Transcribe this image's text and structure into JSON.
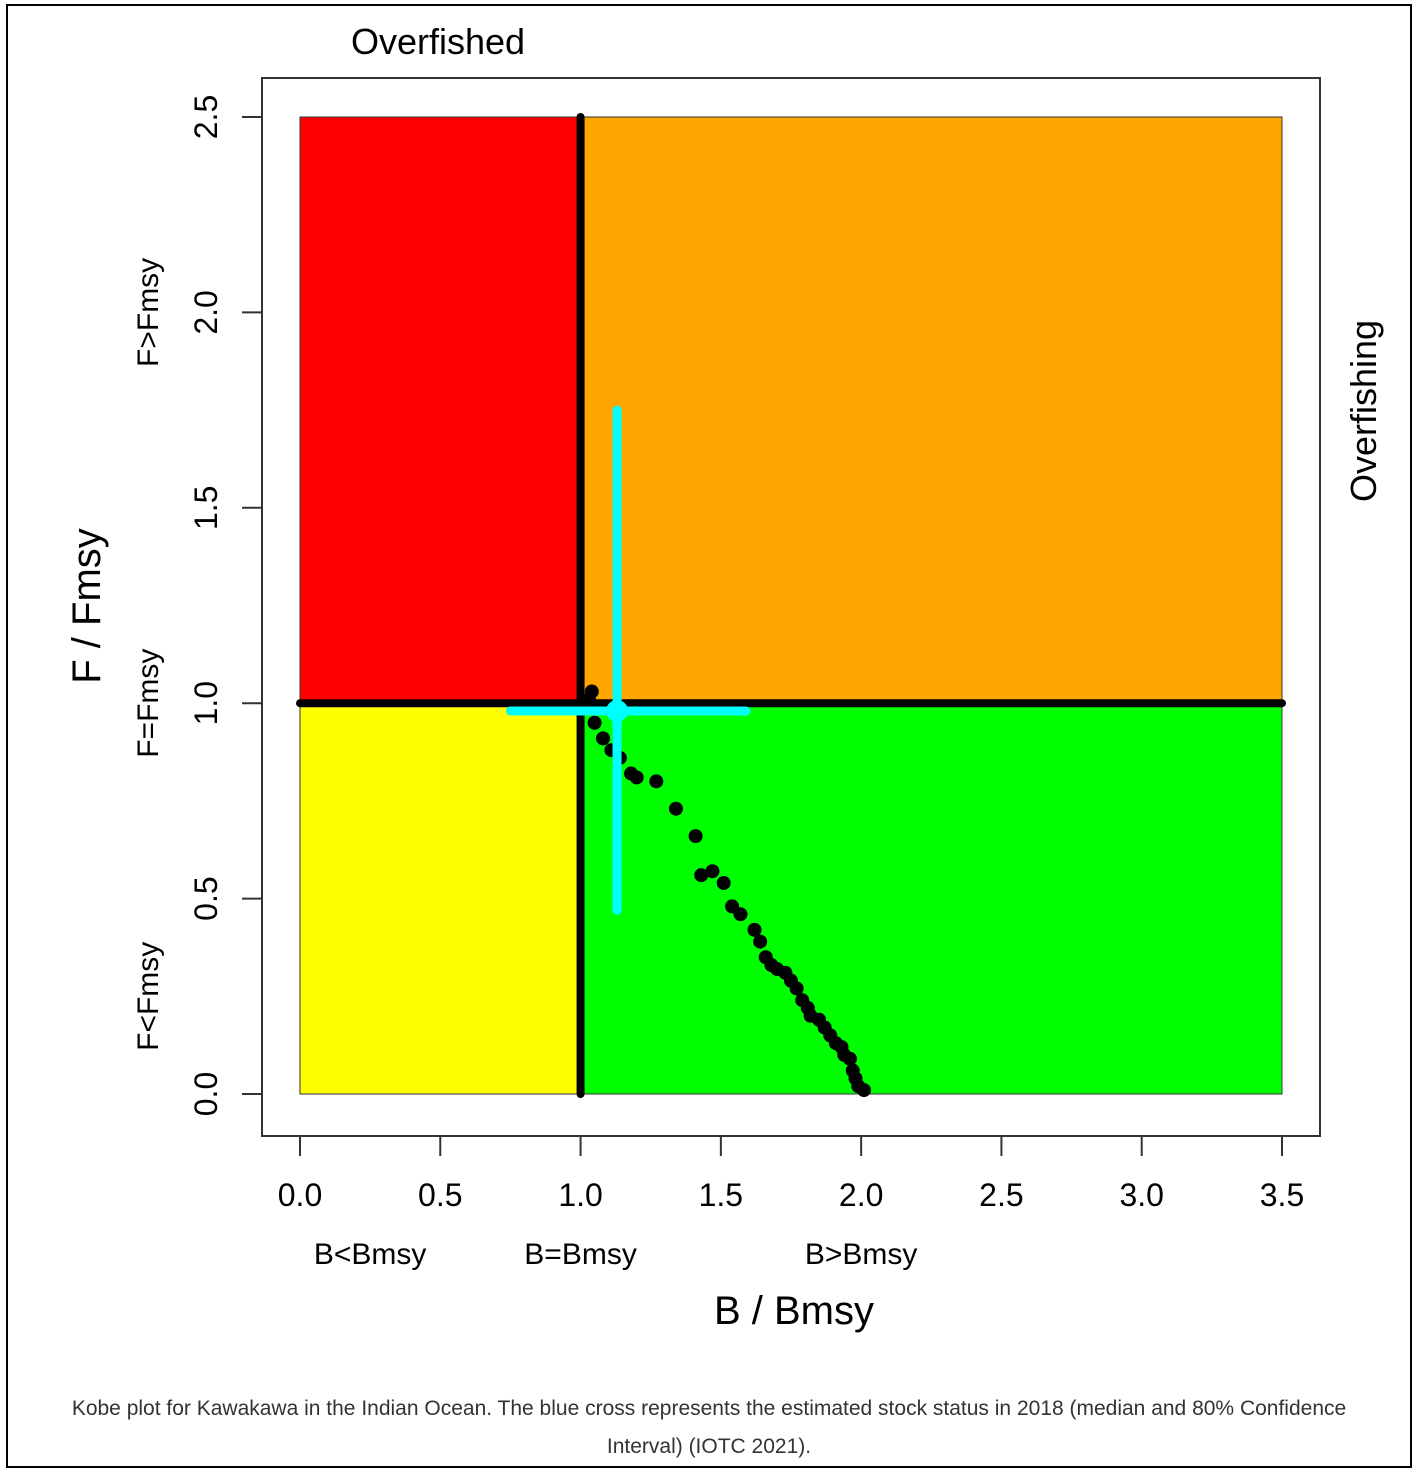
{
  "chart_data": {
    "type": "scatter",
    "title": "Overfished",
    "right_title": "Overfishing",
    "xlabel": "B / Bmsy",
    "ylabel": "F / Fmsy",
    "xlim": [
      0,
      3.5
    ],
    "ylim": [
      0,
      2.5
    ],
    "x_ticks": [
      "0.0",
      "0.5",
      "1.0",
      "1.5",
      "2.0",
      "2.5",
      "3.0",
      "3.5"
    ],
    "y_ticks": [
      "0.0",
      "0.5",
      "1.0",
      "1.5",
      "2.0",
      "2.5"
    ],
    "x_region_labels": [
      {
        "text": "B<Bmsy",
        "x": 0.25
      },
      {
        "text": "B=Bmsy",
        "x": 1.0
      },
      {
        "text": "B>Bmsy",
        "x": 2.0
      }
    ],
    "y_region_labels": [
      {
        "text": "F<Fmsy",
        "y": 0.25
      },
      {
        "text": "F=Fmsy",
        "y": 1.0
      },
      {
        "text": "F>Fmsy",
        "y": 2.0
      }
    ],
    "quadrants": [
      {
        "name": "overfished-and-overfishing",
        "x": [
          0,
          1
        ],
        "y": [
          1,
          2.5
        ],
        "color": "#ff0000"
      },
      {
        "name": "overfishing",
        "x": [
          1,
          3.5
        ],
        "y": [
          1,
          2.5
        ],
        "color": "#ffa500"
      },
      {
        "name": "overfished",
        "x": [
          0,
          1
        ],
        "y": [
          0,
          1
        ],
        "color": "#ffff00"
      },
      {
        "name": "healthy",
        "x": [
          1,
          3.5
        ],
        "y": [
          0,
          1
        ],
        "color": "#00ff00"
      }
    ],
    "reference_lines": {
      "x": 1.0,
      "y": 1.0,
      "color": "#000000"
    },
    "trajectory": {
      "color": "#000000",
      "points": [
        [
          2.01,
          0.01
        ],
        [
          1.99,
          0.02
        ],
        [
          1.98,
          0.04
        ],
        [
          1.97,
          0.06
        ],
        [
          1.96,
          0.09
        ],
        [
          1.94,
          0.1
        ],
        [
          1.93,
          0.12
        ],
        [
          1.91,
          0.13
        ],
        [
          1.89,
          0.15
        ],
        [
          1.87,
          0.17
        ],
        [
          1.85,
          0.19
        ],
        [
          1.82,
          0.2
        ],
        [
          1.81,
          0.22
        ],
        [
          1.79,
          0.24
        ],
        [
          1.77,
          0.27
        ],
        [
          1.75,
          0.29
        ],
        [
          1.73,
          0.31
        ],
        [
          1.7,
          0.32
        ],
        [
          1.68,
          0.33
        ],
        [
          1.66,
          0.35
        ],
        [
          1.64,
          0.39
        ],
        [
          1.62,
          0.42
        ],
        [
          1.57,
          0.46
        ],
        [
          1.54,
          0.48
        ],
        [
          1.51,
          0.54
        ],
        [
          1.47,
          0.57
        ],
        [
          1.43,
          0.56
        ],
        [
          1.41,
          0.66
        ],
        [
          1.34,
          0.73
        ],
        [
          1.27,
          0.8
        ],
        [
          1.2,
          0.81
        ],
        [
          1.18,
          0.82
        ],
        [
          1.14,
          0.86
        ],
        [
          1.11,
          0.88
        ],
        [
          1.08,
          0.91
        ],
        [
          1.05,
          0.95
        ],
        [
          1.03,
          1.01
        ],
        [
          1.04,
          1.03
        ]
      ]
    },
    "estimate_2018": {
      "color": "#00ffff",
      "x": 1.13,
      "y": 0.98,
      "x_ci": [
        0.75,
        1.59
      ],
      "y_ci": [
        0.47,
        1.75
      ]
    }
  },
  "caption": "Kobe plot for Kawakawa in the Indian Ocean. The blue cross represents the estimated stock status in 2018 (median and 80% Confidence Interval) (IOTC 2021)."
}
